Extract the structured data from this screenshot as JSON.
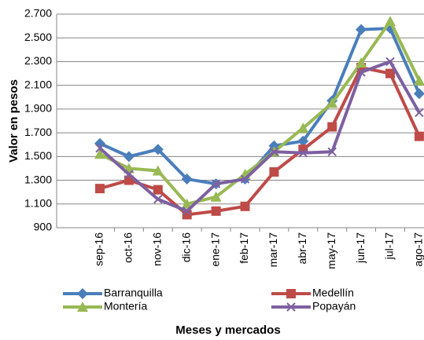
{
  "chart_data": {
    "type": "line",
    "y_label": "Valor en pesos",
    "x_label": "Meses y mercados",
    "categories": [
      "sep-16",
      "oct-16",
      "nov-16",
      "dic-16",
      "ene-17",
      "feb-17",
      "mar-17",
      "abr-17",
      "may-17",
      "jun-17",
      "jul-17",
      "ago-17"
    ],
    "series": [
      {
        "name": "Barranquilla",
        "color": "#4a7ebb",
        "marker": "diamond",
        "values": [
          1610,
          1500,
          1560,
          1310,
          1270,
          1310,
          1590,
          1630,
          1970,
          2570,
          2580,
          2030
        ]
      },
      {
        "name": "Medellín",
        "color": "#be4b48",
        "marker": "square",
        "values": [
          1230,
          1300,
          1220,
          1010,
          1040,
          1080,
          1370,
          1560,
          1750,
          2250,
          2200,
          1670
        ]
      },
      {
        "name": "Montería",
        "color": "#98b954",
        "marker": "triangle",
        "values": [
          1520,
          1400,
          1380,
          1100,
          1160,
          1350,
          1540,
          1740,
          1950,
          2290,
          2640,
          2140
        ]
      },
      {
        "name": "Popayán",
        "color": "#7d60a0",
        "marker": "x",
        "values": [
          1570,
          1350,
          1140,
          1040,
          1270,
          1310,
          1540,
          1530,
          1540,
          2210,
          2300,
          1870
        ]
      }
    ],
    "ylim": [
      900,
      2700
    ],
    "yticks": [
      900,
      {
        "value": 1100,
        "label": "1.100"
      },
      {
        "value": 1300,
        "label": "1.300"
      },
      {
        "value": 1500,
        "label": "1.500"
      },
      {
        "value": 1700,
        "label": "1.700"
      },
      {
        "value": 1900,
        "label": "1.900"
      },
      {
        "value": 2100,
        "label": "2.100"
      },
      {
        "value": 2300,
        "label": "2.300"
      },
      {
        "value": 2500,
        "label": "2.500"
      },
      {
        "value": 2700,
        "label": "2.700"
      }
    ],
    "grid": true
  }
}
